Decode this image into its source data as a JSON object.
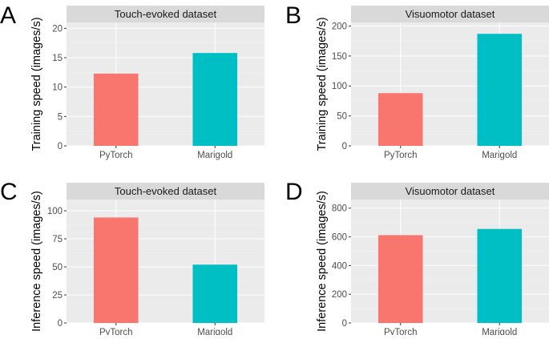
{
  "colors": {
    "pytorch": "#F8766D",
    "marigold": "#00BFC4",
    "panel_bg": "#EBEBEB",
    "strip_bg": "#D9D9D9"
  },
  "chart_data": [
    {
      "panel": "A",
      "type": "bar",
      "title": "Touch-evoked dataset",
      "ylabel": "Training speed (images/s)",
      "xlabel": "",
      "categories": [
        "PyTorch",
        "Marigold"
      ],
      "values": [
        12.3,
        15.8
      ],
      "ylim": [
        0,
        21
      ],
      "yticks": [
        0,
        5,
        10,
        15,
        20
      ],
      "grid": true
    },
    {
      "panel": "B",
      "type": "bar",
      "title": "Visuomotor dataset",
      "ylabel": "Training speed (images/s)",
      "xlabel": "",
      "categories": [
        "PyTorch",
        "Marigold"
      ],
      "values": [
        88,
        187
      ],
      "ylim": [
        0,
        206
      ],
      "yticks": [
        0,
        50,
        100,
        150,
        200
      ],
      "grid": true
    },
    {
      "panel": "C",
      "type": "bar",
      "title": "Touch-evoked dataset",
      "ylabel": "Inference speed (images/s)",
      "xlabel": "",
      "categories": [
        "PyTorch",
        "Marigold"
      ],
      "values": [
        94,
        52
      ],
      "ylim": [
        0,
        110
      ],
      "yticks": [
        0,
        25,
        50,
        75,
        100
      ],
      "grid": true
    },
    {
      "panel": "D",
      "type": "bar",
      "title": "Visuomotor dataset",
      "ylabel": "Inference speed (images/s)",
      "xlabel": "",
      "categories": [
        "PyTorch",
        "Marigold"
      ],
      "values": [
        612,
        655
      ],
      "ylim": [
        0,
        860
      ],
      "yticks": [
        0,
        200,
        400,
        600,
        800
      ],
      "grid": true
    }
  ]
}
